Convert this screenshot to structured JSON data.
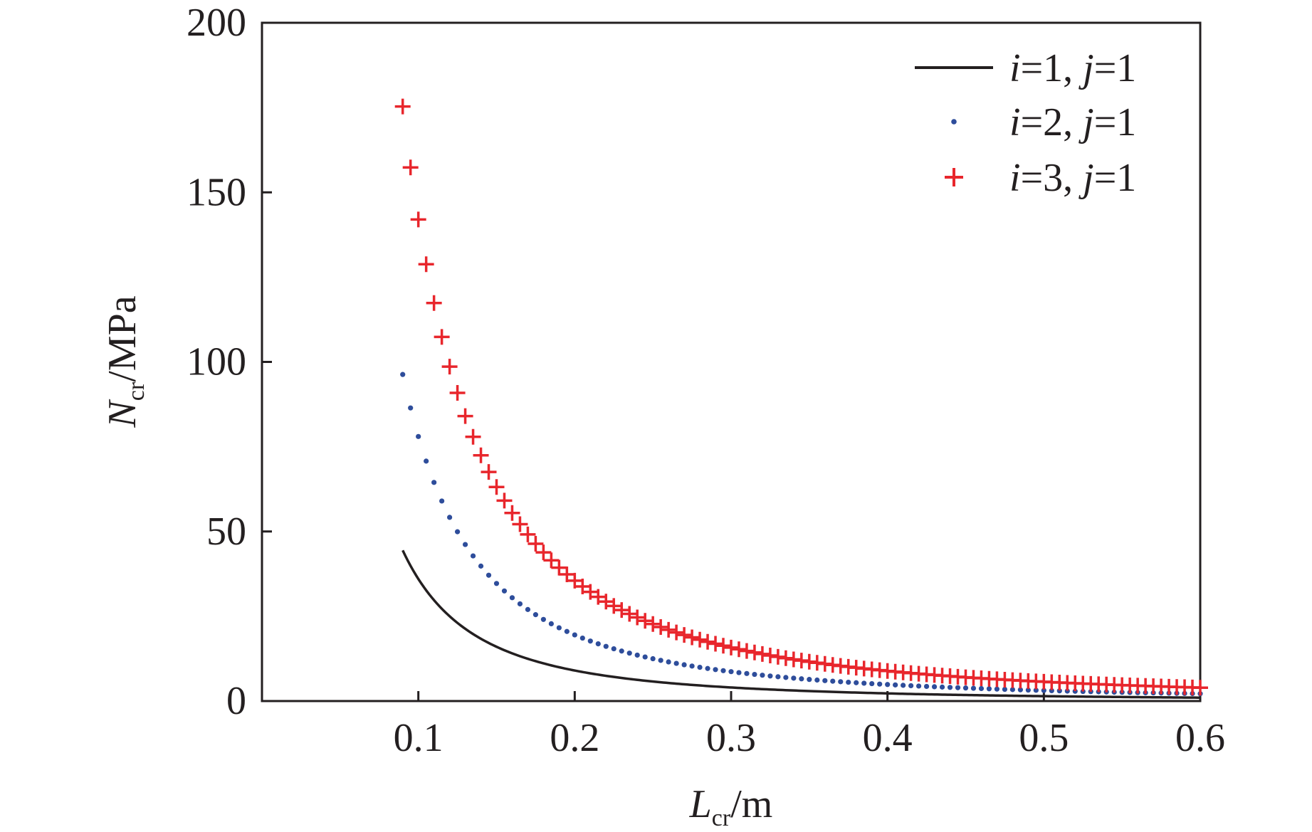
{
  "chart_data": {
    "type": "line",
    "title": "",
    "xlabel": {
      "main": "L",
      "sub": "cr",
      "unit": "/m"
    },
    "ylabel": {
      "main": "N",
      "sub": "cr",
      "unit": "/MPa"
    },
    "xlim": [
      0,
      0.6
    ],
    "ylim": [
      0,
      200
    ],
    "xticks": [
      0.1,
      0.2,
      0.3,
      0.4,
      0.5,
      0.6
    ],
    "xtick_labels": [
      "0.1",
      "0.2",
      "0.3",
      "0.4",
      "0.5",
      "0.6"
    ],
    "yticks": [
      0,
      50,
      100,
      150,
      200
    ],
    "ytick_labels": [
      "0",
      "50",
      "100",
      "150",
      "200"
    ],
    "grid": false,
    "legend_position": "top-right",
    "x_range": {
      "start": 0.09,
      "end": 0.6
    },
    "series": [
      {
        "name": "i=1, j=1",
        "label_parts": [
          "i",
          "=1, ",
          "j",
          "=1"
        ],
        "style": "line",
        "color": "#231f20",
        "coefficient": 0.36,
        "sample_points": [
          [
            0.09,
            44.4
          ],
          [
            0.1,
            36.0
          ],
          [
            0.2,
            9.0
          ],
          [
            0.3,
            4.0
          ],
          [
            0.4,
            2.25
          ],
          [
            0.5,
            1.44
          ],
          [
            0.6,
            1.0
          ]
        ]
      },
      {
        "name": "i=2, j=1",
        "label_parts": [
          "i",
          "=2, ",
          "j",
          "=1"
        ],
        "style": "dots",
        "color": "#2e4d9b",
        "coefficient": 0.78,
        "step": 0.005,
        "sample_points": [
          [
            0.09,
            96.3
          ],
          [
            0.1,
            78.0
          ],
          [
            0.2,
            19.5
          ],
          [
            0.3,
            8.7
          ],
          [
            0.4,
            4.9
          ],
          [
            0.5,
            3.1
          ],
          [
            0.6,
            2.2
          ]
        ]
      },
      {
        "name": "i=3, j=1",
        "label_parts": [
          "i",
          "=3, ",
          "j",
          "=1"
        ],
        "style": "plus",
        "color": "#e8262c",
        "coefficient": 1.42,
        "step": 0.005,
        "sample_points": [
          [
            0.09,
            175.3
          ],
          [
            0.1,
            142.0
          ],
          [
            0.2,
            35.5
          ],
          [
            0.3,
            15.8
          ],
          [
            0.4,
            8.9
          ],
          [
            0.5,
            5.7
          ],
          [
            0.6,
            3.9
          ]
        ]
      }
    ]
  }
}
